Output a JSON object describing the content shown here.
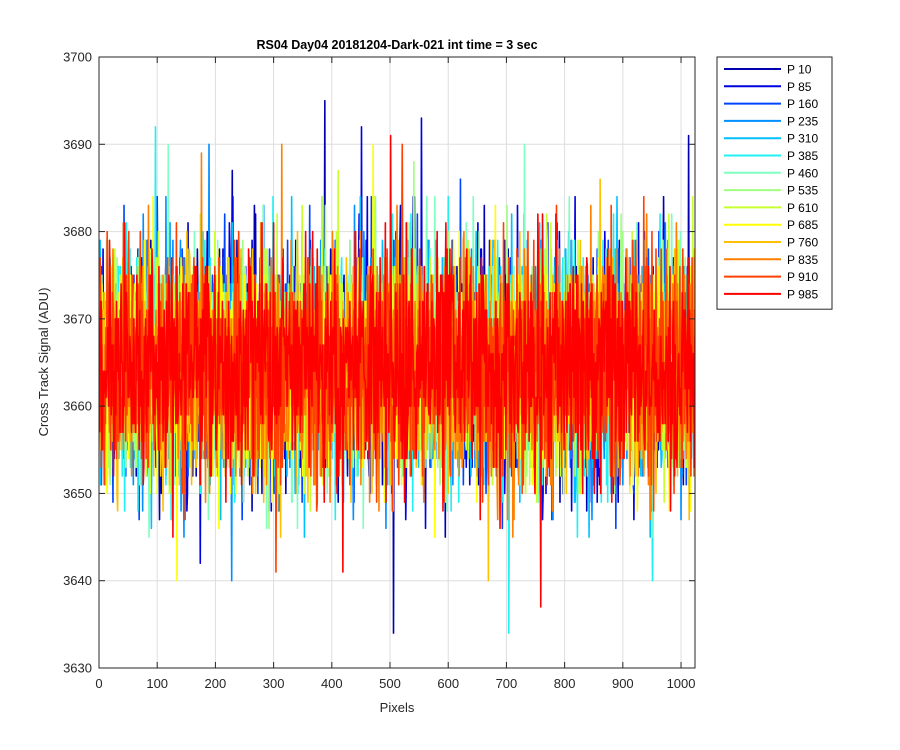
{
  "chart_data": {
    "type": "line",
    "title": "RS04 Day04 20181204-Dark-021 int time = 3 sec",
    "xlabel": "Pixels",
    "ylabel": "Cross Track Signal (ADU)",
    "xlim": [
      0,
      1024
    ],
    "ylim": [
      3630,
      3700
    ],
    "xticks": [
      0,
      100,
      200,
      300,
      400,
      500,
      600,
      700,
      800,
      900,
      1000
    ],
    "yticks": [
      3630,
      3640,
      3650,
      3660,
      3670,
      3680,
      3690,
      3700
    ],
    "grid": true,
    "legend_position": "outside-top-right",
    "n_points": 1024,
    "series": [
      {
        "name": "P 10",
        "color": "#0000b0",
        "mean": 3664.5,
        "std": 6.3,
        "seed": 11,
        "spikes": [
          [
            387,
            3695
          ],
          [
            505,
            3634
          ],
          [
            228,
            3687
          ],
          [
            1012,
            3691
          ]
        ]
      },
      {
        "name": "P 85",
        "color": "#0000e0",
        "mean": 3664.5,
        "std": 6.3,
        "seed": 23,
        "spikes": [
          [
            553,
            3693
          ],
          [
            173,
            3642
          ],
          [
            450,
            3692
          ]
        ]
      },
      {
        "name": "P 160",
        "color": "#0044ff",
        "mean": 3664.5,
        "std": 6.3,
        "seed": 37,
        "spikes": [
          [
            262,
            3650
          ],
          [
            620,
            3686
          ]
        ]
      },
      {
        "name": "P 235",
        "color": "#0090ff",
        "mean": 3664.5,
        "std": 6.3,
        "seed": 41,
        "spikes": [
          [
            227,
            3640
          ],
          [
            188,
            3690
          ]
        ]
      },
      {
        "name": "P 310",
        "color": "#00c0ff",
        "mean": 3664.5,
        "std": 6.3,
        "seed": 53,
        "spikes": [
          [
            330,
            3684
          ]
        ]
      },
      {
        "name": "P 385",
        "color": "#20f0f0",
        "mean": 3664.5,
        "std": 6.3,
        "seed": 67,
        "spikes": [
          [
            703,
            3634
          ],
          [
            96,
            3692
          ],
          [
            950,
            3640
          ]
        ]
      },
      {
        "name": "P 460",
        "color": "#80ffc0",
        "mean": 3664.5,
        "std": 6.3,
        "seed": 71,
        "spikes": [
          [
            730,
            3690
          ],
          [
            118,
            3690
          ]
        ]
      },
      {
        "name": "P 535",
        "color": "#a0ff80",
        "mean": 3664.5,
        "std": 6.3,
        "seed": 83,
        "spikes": [
          [
            540,
            3688
          ]
        ]
      },
      {
        "name": "P 610",
        "color": "#c8ff30",
        "mean": 3664.5,
        "std": 6.3,
        "seed": 97,
        "spikes": [
          [
            410,
            3687
          ]
        ]
      },
      {
        "name": "P 685",
        "color": "#ffff00",
        "mean": 3664.5,
        "std": 6.3,
        "seed": 101,
        "spikes": [
          [
            133,
            3640
          ],
          [
            470,
            3690
          ]
        ]
      },
      {
        "name": "P 760",
        "color": "#ffc000",
        "mean": 3664.5,
        "std": 6.3,
        "seed": 113,
        "spikes": [
          [
            668,
            3640
          ],
          [
            860,
            3686
          ]
        ]
      },
      {
        "name": "P 835",
        "color": "#ff8000",
        "mean": 3664.5,
        "std": 6.3,
        "seed": 127,
        "spikes": [
          [
            175,
            3689
          ],
          [
            313,
            3690
          ]
        ]
      },
      {
        "name": "P 910",
        "color": "#ff4000",
        "mean": 3664.5,
        "std": 6.3,
        "seed": 131,
        "spikes": [
          [
            303,
            3641
          ],
          [
            520,
            3690
          ]
        ]
      },
      {
        "name": "P 985",
        "color": "#ff0000",
        "mean": 3664.5,
        "std": 6.3,
        "seed": 149,
        "spikes": [
          [
            758,
            3637
          ],
          [
            500,
            3691
          ],
          [
            418,
            3641
          ]
        ]
      }
    ]
  }
}
